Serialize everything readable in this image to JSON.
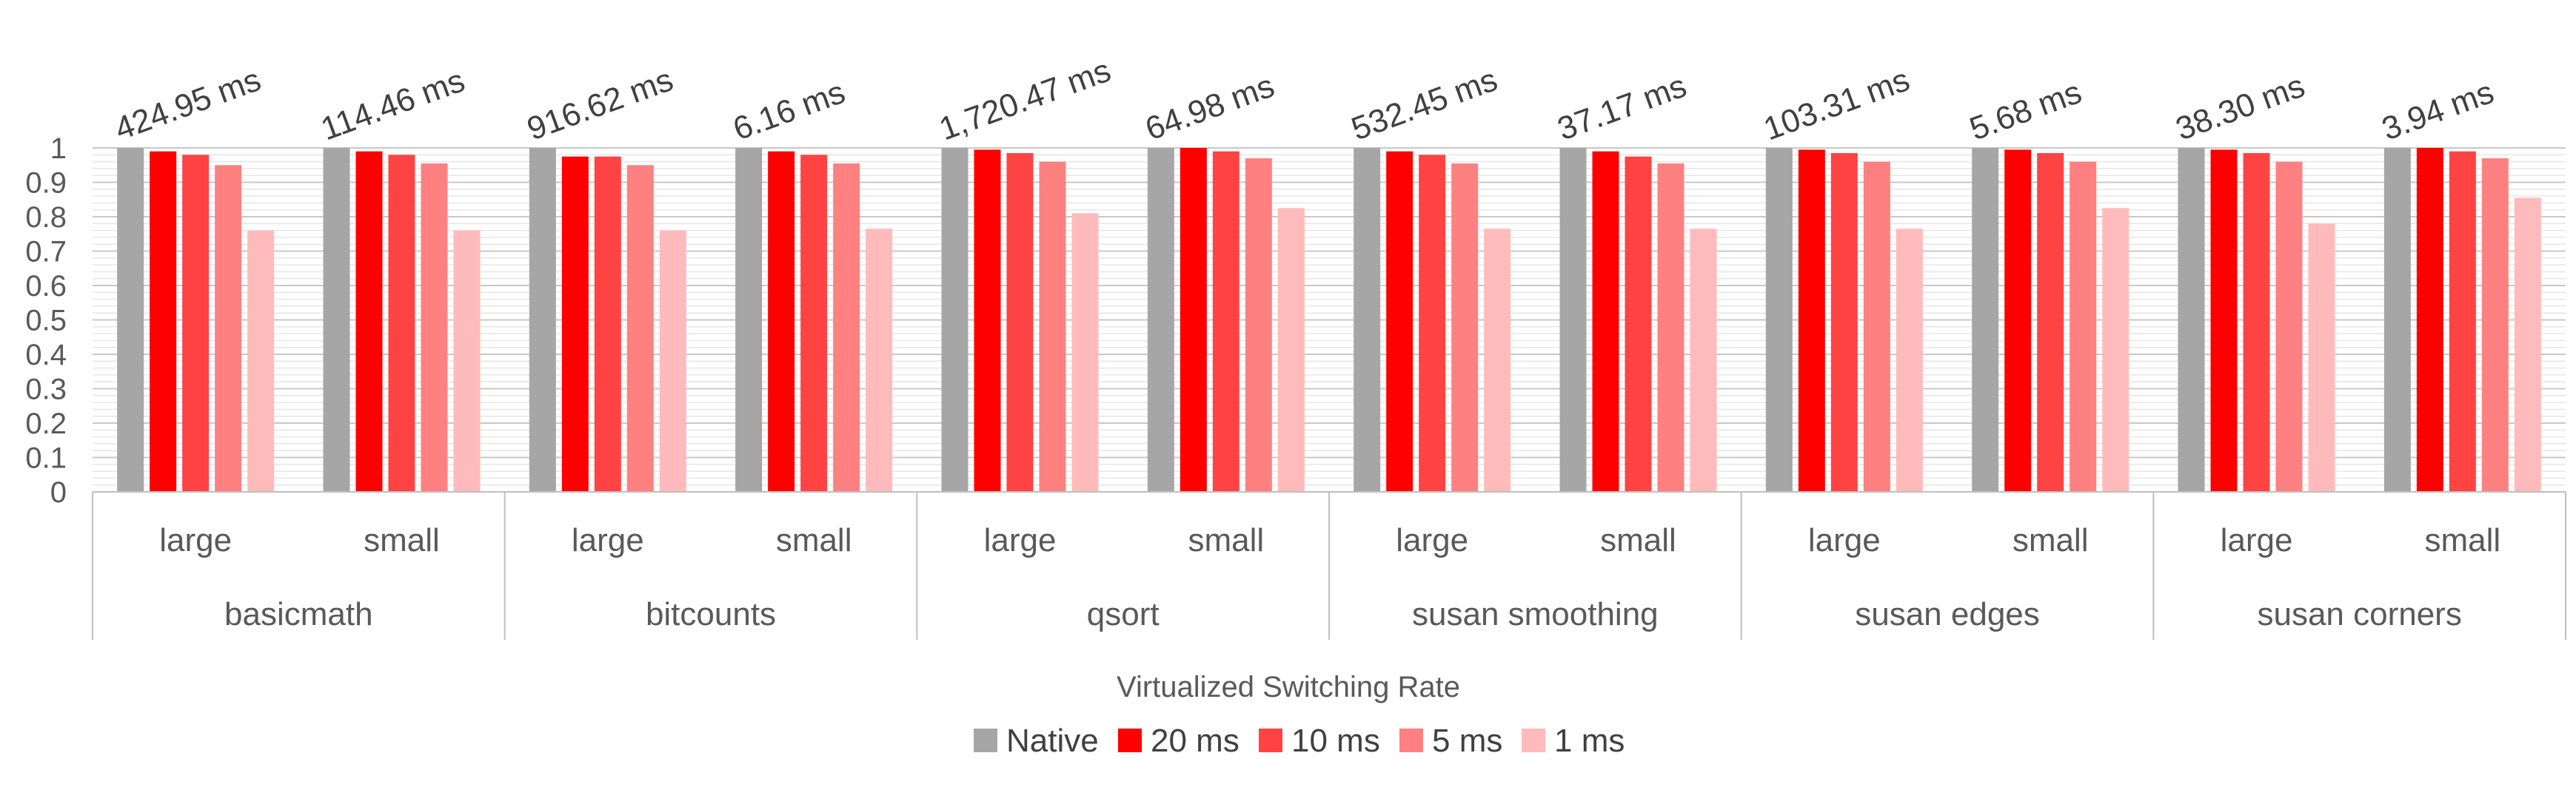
{
  "chart_data": {
    "type": "bar",
    "title": "",
    "xlabel": "",
    "ylabel": "",
    "ylim": [
      0,
      1
    ],
    "yticks": [
      "0",
      "0.1",
      "0.2",
      "0.3",
      "0.4",
      "0.5",
      "0.6",
      "0.7",
      "0.8",
      "0.9",
      "1"
    ],
    "groups": [
      "basicmath",
      "bitcounts",
      "qsort",
      "susan smoothing",
      "susan edges",
      "susan corners"
    ],
    "subcategories": [
      "large",
      "small",
      "large",
      "small",
      "large",
      "small",
      "large",
      "small",
      "large",
      "small",
      "large",
      "small"
    ],
    "native_labels": [
      "424.95 ms",
      "114.46 ms",
      "916.62 ms",
      "6.16 ms",
      "1,720.47 ms",
      "64.98 ms",
      "532.45 ms",
      "37.17 ms",
      "103.31 ms",
      "5.68 ms",
      "38.30 ms",
      "3.94 ms"
    ],
    "series": [
      {
        "name": "Native",
        "color": "#a6a6a6",
        "values": [
          1,
          1,
          1,
          1,
          1,
          1,
          1,
          1,
          1,
          1,
          1,
          1
        ]
      },
      {
        "name": "20 ms",
        "color": "#ff0000",
        "values": [
          0.99,
          0.99,
          0.975,
          0.99,
          0.995,
          1.0,
          0.99,
          0.99,
          0.995,
          0.995,
          0.995,
          1.0
        ]
      },
      {
        "name": "10 ms",
        "color": "#ff4343",
        "values": [
          0.98,
          0.98,
          0.975,
          0.98,
          0.985,
          0.99,
          0.98,
          0.975,
          0.985,
          0.985,
          0.985,
          0.99
        ]
      },
      {
        "name": "5 ms",
        "color": "#ff8080",
        "values": [
          0.95,
          0.955,
          0.95,
          0.955,
          0.96,
          0.97,
          0.955,
          0.955,
          0.96,
          0.96,
          0.96,
          0.97
        ]
      },
      {
        "name": "1 ms",
        "color": "#ffbbbb",
        "values": [
          0.76,
          0.76,
          0.76,
          0.765,
          0.81,
          0.825,
          0.765,
          0.765,
          0.765,
          0.825,
          0.78,
          0.855
        ]
      }
    ],
    "legend": {
      "title": "Virtualized Switching Rate",
      "position": "bottom"
    }
  }
}
